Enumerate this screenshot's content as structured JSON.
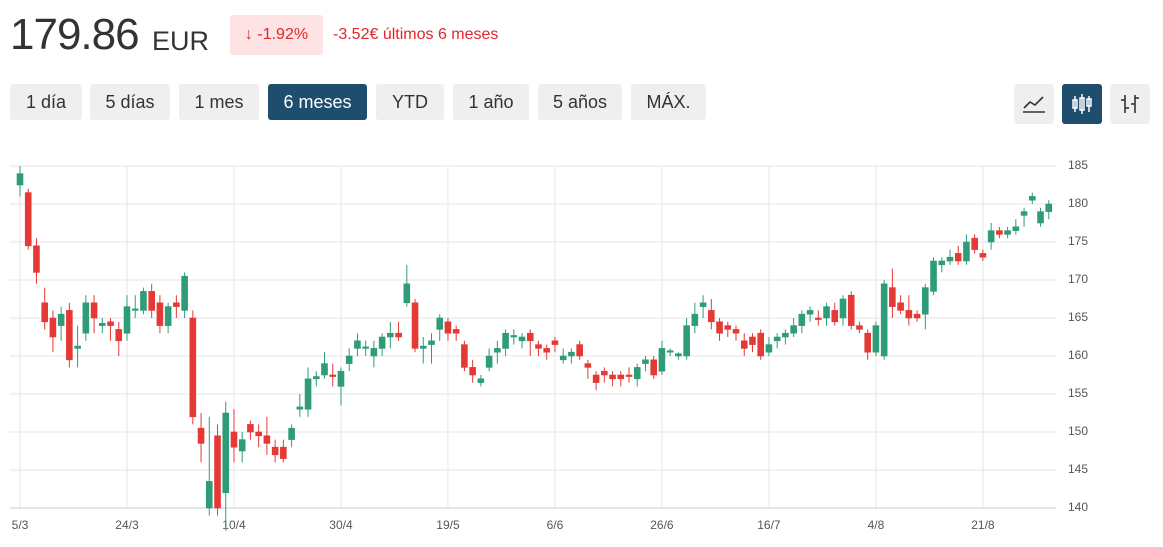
{
  "header": {
    "price": "179.86",
    "currency": "EUR",
    "change_pct": "-1.92%",
    "change_text": "-3.52€ últimos 6 meses"
  },
  "range_buttons": [
    "1 día",
    "5 días",
    "1 mes",
    "6 meses",
    "YTD",
    "1 año",
    "5 años",
    "MÁX."
  ],
  "active_range": 3,
  "chart_data": {
    "type": "candlestick",
    "categories": [
      "5/3",
      null,
      null,
      null,
      null,
      null,
      null,
      null,
      null,
      null,
      null,
      null,
      null,
      "24/3",
      null,
      null,
      null,
      null,
      null,
      null,
      null,
      null,
      null,
      null,
      null,
      null,
      "10/4",
      null,
      null,
      null,
      null,
      null,
      null,
      null,
      null,
      null,
      null,
      null,
      null,
      "30/4",
      null,
      null,
      null,
      null,
      null,
      null,
      null,
      null,
      null,
      null,
      null,
      null,
      "19/5",
      null,
      null,
      null,
      null,
      null,
      null,
      null,
      null,
      null,
      null,
      null,
      null,
      "6/6",
      null,
      null,
      null,
      null,
      null,
      null,
      null,
      null,
      null,
      null,
      null,
      null,
      "26/6",
      null,
      null,
      null,
      null,
      null,
      null,
      null,
      null,
      null,
      null,
      null,
      null,
      "16/7",
      null,
      null,
      null,
      null,
      null,
      null,
      null,
      null,
      null,
      null,
      null,
      null,
      "4/8",
      null,
      null,
      null,
      null,
      null,
      null,
      null,
      null,
      null,
      null,
      null,
      null,
      "21/8",
      null,
      null,
      null,
      null,
      null,
      null,
      null,
      null
    ],
    "open": [
      182.5,
      181.5,
      174.5,
      167,
      165,
      164,
      166,
      161,
      163,
      167,
      164,
      164.5,
      163.5,
      163,
      166,
      166,
      168.5,
      167,
      164,
      167,
      166,
      165,
      150.5,
      140,
      149.5,
      142,
      150,
      147.5,
      151,
      150,
      149.5,
      148,
      148,
      149,
      153,
      153,
      157,
      157.5,
      157.5,
      156,
      159,
      161,
      161,
      160,
      161,
      162.5,
      163,
      167,
      167,
      161,
      161.5,
      163.5,
      164.5,
      163.5,
      161.5,
      158.5,
      156.5,
      158.5,
      160.5,
      161,
      162.5,
      162,
      163,
      161.5,
      161,
      162,
      159.5,
      160,
      161.5,
      159,
      157.5,
      158,
      157.5,
      157.5,
      157.5,
      157,
      159,
      159.5,
      158,
      160.5,
      160,
      160,
      164,
      166.5,
      166,
      164.5,
      164,
      163.5,
      162,
      162.5,
      163,
      160.5,
      162,
      162.5,
      163,
      164,
      165.5,
      165,
      165,
      166,
      165,
      168,
      164,
      163,
      160.5,
      160,
      169,
      167,
      166,
      165.5,
      165.5,
      168.5,
      172,
      172.5,
      173.5,
      172.5,
      175.5,
      173.5,
      175,
      176.5,
      176,
      176.5,
      178.5,
      180.5,
      177.5,
      179
    ],
    "high": [
      185,
      182,
      175.5,
      169,
      166,
      166.5,
      167,
      164,
      168,
      168,
      165,
      165,
      164.5,
      168,
      168,
      169,
      169.5,
      168,
      167,
      168,
      171,
      166,
      152.5,
      152,
      151,
      154,
      153,
      150,
      151.5,
      151,
      152,
      149,
      149,
      151,
      155,
      158.5,
      158,
      160.5,
      159,
      158.5,
      161,
      163,
      162,
      162,
      163,
      164.5,
      164.5,
      172,
      167.5,
      162.5,
      163,
      165.5,
      165,
      164,
      162,
      159.5,
      157.5,
      161,
      162,
      163.5,
      163.5,
      163,
      163.5,
      162,
      161.5,
      162.5,
      161,
      161,
      162,
      159.5,
      158,
      158.5,
      158,
      158,
      158.5,
      159,
      160,
      160,
      162,
      161,
      160.5,
      165,
      167,
      168,
      167.5,
      165,
      164.5,
      164,
      163,
      163,
      163.5,
      162.5,
      163,
      163.5,
      165,
      166,
      166.5,
      166,
      167,
      167,
      168,
      168.5,
      164.5,
      163.5,
      164.5,
      170,
      171.5,
      168,
      168,
      166,
      169.5,
      173,
      173,
      174,
      174.5,
      176,
      176,
      174,
      177.5,
      177,
      177,
      178,
      179.5,
      181.5,
      179.5,
      180.5
    ],
    "low": [
      181,
      174,
      169.5,
      163.5,
      160.5,
      162,
      158.5,
      158.5,
      162,
      163,
      163,
      162,
      160,
      162,
      165,
      165.5,
      165,
      163,
      163,
      165,
      165,
      151,
      146,
      139,
      139,
      137,
      146,
      146,
      149,
      148,
      147,
      146,
      146,
      148,
      152,
      152,
      156,
      157,
      156,
      153.5,
      158,
      160,
      160,
      158.5,
      160,
      161,
      162,
      166.5,
      160.5,
      159,
      159,
      162,
      162,
      162,
      158,
      156.5,
      156,
      158,
      159,
      160,
      161.5,
      161,
      160,
      160,
      159.5,
      160.5,
      159,
      159,
      159.5,
      157,
      155.5,
      156.5,
      156,
      156,
      156.5,
      156,
      158,
      157,
      157.5,
      160,
      159.5,
      159.5,
      163,
      165,
      163.5,
      162,
      162.5,
      162,
      160,
      160.5,
      159.5,
      160,
      161,
      161.5,
      162.5,
      163,
      164.5,
      164,
      164,
      164,
      164,
      163.5,
      163,
      159.5,
      160,
      159.5,
      165,
      165.5,
      164,
      164.5,
      163.5,
      168,
      171,
      172,
      172,
      172,
      173.5,
      172.5,
      174,
      175.5,
      175.5,
      176,
      177,
      180,
      177,
      178
    ],
    "close": [
      184,
      174.5,
      171,
      164.5,
      162.5,
      165.5,
      159.5,
      161.3,
      167,
      165,
      164.3,
      164,
      162,
      166.5,
      166.2,
      168.5,
      166,
      164,
      166.5,
      166.5,
      170.5,
      152,
      148.5,
      143.5,
      140,
      152.5,
      148,
      149,
      150,
      149.5,
      148.5,
      147,
      146.5,
      150.5,
      153.3,
      157,
      157.3,
      159,
      157.3,
      158,
      160,
      162,
      161.2,
      161,
      162.5,
      163,
      162.5,
      169.5,
      161,
      161.3,
      162,
      165,
      163,
      163,
      158.5,
      157.5,
      157,
      160,
      161,
      163,
      162.7,
      162.5,
      162,
      161,
      160.5,
      161.5,
      160,
      160.5,
      160,
      158.5,
      156.5,
      157.5,
      157,
      157,
      157.3,
      158.5,
      159.5,
      157.5,
      161,
      160.7,
      160.3,
      164,
      165.5,
      167,
      164.5,
      163,
      163.5,
      163,
      161,
      161.5,
      160,
      161.5,
      162.5,
      163,
      164,
      165.5,
      166,
      164.8,
      166.5,
      164.5,
      167.5,
      164,
      163.5,
      160.5,
      164,
      169.5,
      166.5,
      166,
      165,
      165,
      169,
      172.5,
      172.5,
      173,
      172.5,
      175,
      174,
      173,
      176.5,
      176,
      176.5,
      177,
      179,
      181,
      179,
      180
    ],
    "up_color": "#2f9c78",
    "down_color": "#e53935",
    "ylim": [
      140,
      185
    ],
    "yticks": [
      140,
      145,
      150,
      155,
      160,
      165,
      170,
      175,
      180,
      185
    ],
    "grid": true
  }
}
